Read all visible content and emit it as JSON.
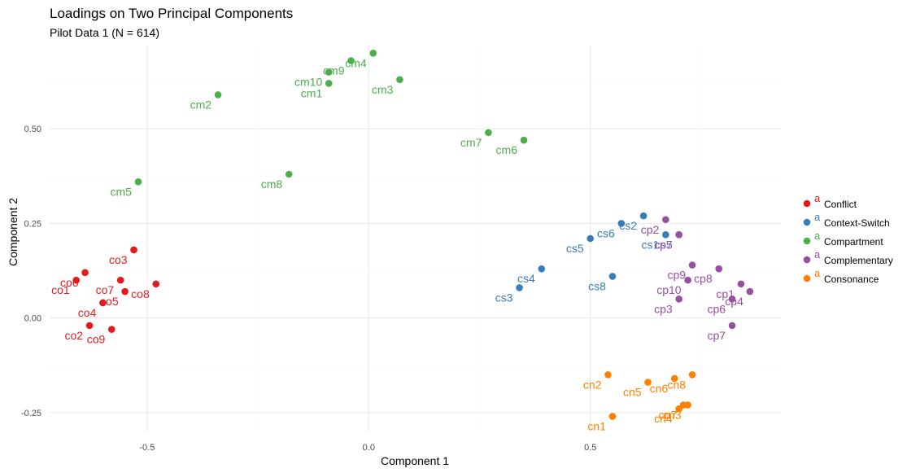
{
  "chart_data": {
    "type": "scatter",
    "title": "Loadings on Two Principal Components",
    "subtitle": "Pilot Data 1 (N = 614)",
    "xlabel": "Component 1",
    "ylabel": "Component 2",
    "xlim": [
      -0.72,
      0.93
    ],
    "ylim": [
      -0.3,
      0.72
    ],
    "x_ticks": [
      -0.5,
      0.0,
      0.5
    ],
    "x_tick_labels": [
      "-0.5",
      "0.0",
      "0.5"
    ],
    "y_ticks": [
      -0.25,
      0.0,
      0.25,
      0.5
    ],
    "y_tick_labels": [
      "-0.25",
      "0.00",
      "0.25",
      "0.50"
    ],
    "grid": true,
    "legend_position": "right",
    "legend_key_glyph": "a",
    "series": [
      {
        "name": "Conflict",
        "color": "#E41A1C",
        "points": [
          {
            "label": "co1",
            "x": -0.66,
            "y": 0.1
          },
          {
            "label": "co2",
            "x": -0.63,
            "y": -0.02
          },
          {
            "label": "co3",
            "x": -0.53,
            "y": 0.18
          },
          {
            "label": "co4",
            "x": -0.6,
            "y": 0.04
          },
          {
            "label": "co5",
            "x": -0.55,
            "y": 0.07
          },
          {
            "label": "co6",
            "x": -0.64,
            "y": 0.12
          },
          {
            "label": "co7",
            "x": -0.56,
            "y": 0.1
          },
          {
            "label": "co8",
            "x": -0.48,
            "y": 0.09
          },
          {
            "label": "co9",
            "x": -0.58,
            "y": -0.03
          }
        ]
      },
      {
        "name": "Context-Switch",
        "color": "#377EB8",
        "points": [
          {
            "label": "cs1",
            "x": 0.67,
            "y": 0.22
          },
          {
            "label": "cs2",
            "x": 0.62,
            "y": 0.27
          },
          {
            "label": "cs3",
            "x": 0.34,
            "y": 0.08
          },
          {
            "label": "cs4",
            "x": 0.39,
            "y": 0.13
          },
          {
            "label": "cs5",
            "x": 0.5,
            "y": 0.21
          },
          {
            "label": "cs6",
            "x": 0.57,
            "y": 0.25
          },
          {
            "label": "cs7",
            "x": 0.7,
            "y": 0.22
          },
          {
            "label": "cs8",
            "x": 0.55,
            "y": 0.11
          }
        ]
      },
      {
        "name": "Compartment",
        "color": "#4DAF4A",
        "points": [
          {
            "label": "cm1",
            "x": -0.09,
            "y": 0.62
          },
          {
            "label": "cm2",
            "x": -0.34,
            "y": 0.59
          },
          {
            "label": "cm3",
            "x": 0.07,
            "y": 0.63
          },
          {
            "label": "cm4",
            "x": 0.01,
            "y": 0.7
          },
          {
            "label": "cm5",
            "x": -0.52,
            "y": 0.36
          },
          {
            "label": "cm6",
            "x": 0.35,
            "y": 0.47
          },
          {
            "label": "cm7",
            "x": 0.27,
            "y": 0.49
          },
          {
            "label": "cm8",
            "x": -0.18,
            "y": 0.38
          },
          {
            "label": "cm9",
            "x": -0.04,
            "y": 0.68
          },
          {
            "label": "cm10",
            "x": -0.09,
            "y": 0.65
          }
        ]
      },
      {
        "name": "Complementary",
        "color": "#984EA3",
        "points": [
          {
            "label": "cp1",
            "x": 0.84,
            "y": 0.09
          },
          {
            "label": "cp2",
            "x": 0.67,
            "y": 0.26
          },
          {
            "label": "cp3",
            "x": 0.7,
            "y": 0.05
          },
          {
            "label": "cp4",
            "x": 0.86,
            "y": 0.07
          },
          {
            "label": "cp5",
            "x": 0.7,
            "y": 0.22
          },
          {
            "label": "cp6",
            "x": 0.82,
            "y": 0.05
          },
          {
            "label": "cp7",
            "x": 0.82,
            "y": -0.02
          },
          {
            "label": "cp8",
            "x": 0.79,
            "y": 0.13
          },
          {
            "label": "cp9",
            "x": 0.73,
            "y": 0.14
          },
          {
            "label": "cp10",
            "x": 0.72,
            "y": 0.1
          }
        ]
      },
      {
        "name": "Consonance",
        "color": "#FF7F00",
        "points": [
          {
            "label": "cn1",
            "x": 0.55,
            "y": -0.26
          },
          {
            "label": "cn2",
            "x": 0.54,
            "y": -0.15
          },
          {
            "label": "cn3",
            "x": 0.72,
            "y": -0.23
          },
          {
            "label": "cn4",
            "x": 0.7,
            "y": -0.24
          },
          {
            "label": "cn5",
            "x": 0.63,
            "y": -0.17
          },
          {
            "label": "cn6",
            "x": 0.69,
            "y": -0.16
          },
          {
            "label": "cn7",
            "x": 0.71,
            "y": -0.23
          },
          {
            "label": "cn8",
            "x": 0.73,
            "y": -0.15
          }
        ]
      }
    ]
  }
}
